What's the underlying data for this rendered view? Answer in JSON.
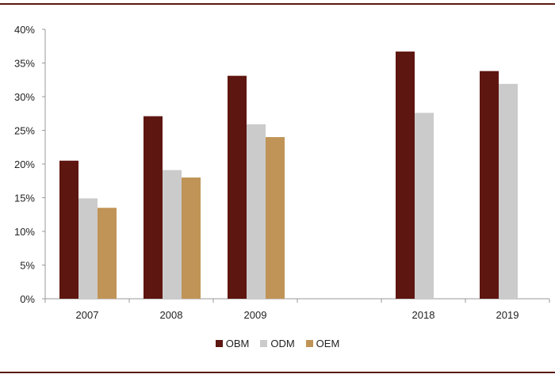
{
  "chart_data": {
    "type": "bar",
    "title": "",
    "xlabel": "",
    "ylabel": "",
    "ylim": [
      0,
      40
    ],
    "yticks": [
      "0%",
      "5%",
      "10%",
      "15%",
      "20%",
      "25%",
      "30%",
      "35%",
      "40%"
    ],
    "ytick_values": [
      0,
      5,
      10,
      15,
      20,
      25,
      30,
      35,
      40
    ],
    "categories": [
      "2007",
      "2008",
      "2009",
      "",
      "2018",
      "2019"
    ],
    "series": [
      {
        "name": "OBM",
        "color": "#5e1610",
        "values": [
          20.5,
          27.1,
          33.1,
          null,
          36.7,
          33.8
        ]
      },
      {
        "name": "ODM",
        "color": "#cbcbcb",
        "values": [
          14.9,
          19.1,
          25.9,
          null,
          27.6,
          31.9
        ]
      },
      {
        "name": "OEM",
        "color": "#c09457",
        "values": [
          13.5,
          18.0,
          24.0,
          null,
          null,
          null
        ]
      }
    ],
    "legend_position": "bottom-center",
    "grid": false
  }
}
